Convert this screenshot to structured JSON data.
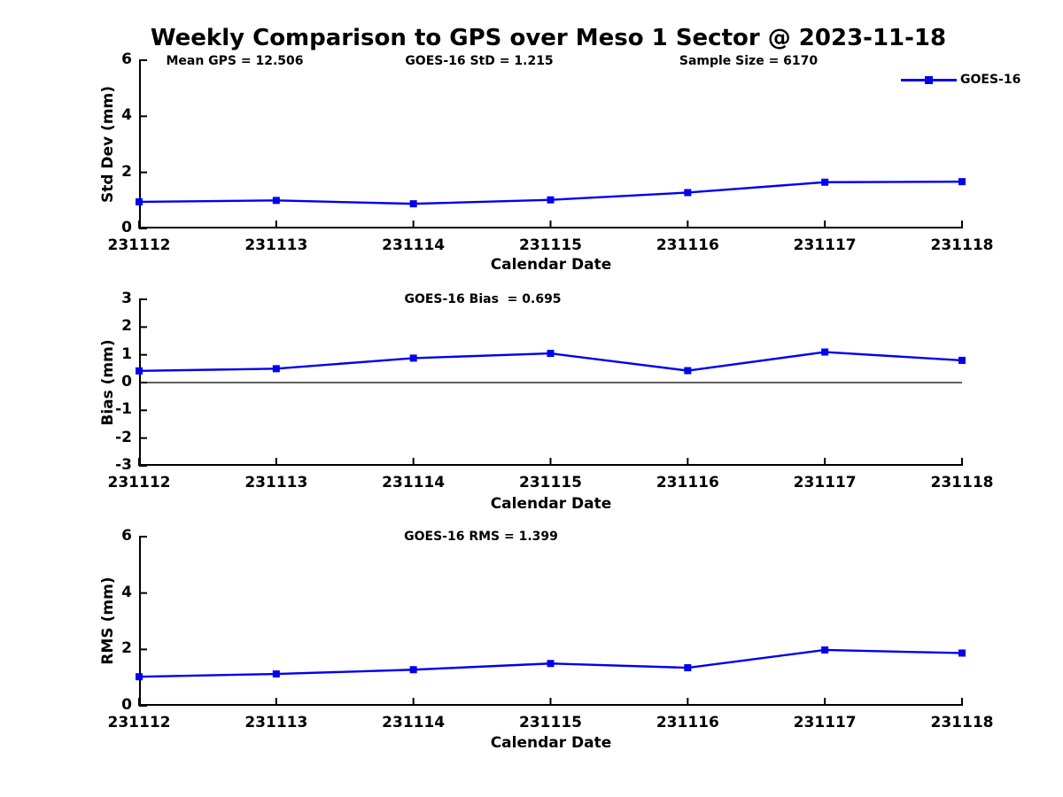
{
  "title": "Weekly Comparison to GPS over Meso 1 Sector @ 2023-11-18",
  "annotations": {
    "mean_gps": "Mean GPS = 12.506",
    "goes16_std": "GOES-16 StD = 1.215",
    "sample_size": "Sample Size = 6170"
  },
  "legend": {
    "label": "GOES-16"
  },
  "colors": {
    "line": "#0000ee",
    "axis": "#000000",
    "background": "#ffffff"
  },
  "chart_data": [
    {
      "type": "line",
      "title": "",
      "ylabel": "Std Dev (mm)",
      "xlabel": "Calendar Date",
      "x": [
        "231112",
        "231113",
        "231114",
        "231115",
        "231116",
        "231117",
        "231118"
      ],
      "series": [
        {
          "name": "GOES-16",
          "values": [
            0.95,
            1.0,
            0.88,
            1.02,
            1.28,
            1.65,
            1.67
          ]
        }
      ],
      "ylim": [
        0,
        6
      ],
      "yticks": [
        0,
        2,
        4,
        6
      ],
      "grid": false,
      "legend_position": "top-right",
      "zero_line": false
    },
    {
      "type": "line",
      "title": "GOES-16 Bias  = 0.695",
      "ylabel": "Bias (mm)",
      "xlabel": "Calendar Date",
      "x": [
        "231112",
        "231113",
        "231114",
        "231115",
        "231116",
        "231117",
        "231118"
      ],
      "series": [
        {
          "name": "GOES-16",
          "values": [
            0.42,
            0.5,
            0.88,
            1.05,
            0.43,
            1.1,
            0.8
          ]
        }
      ],
      "ylim": [
        -3,
        3
      ],
      "yticks": [
        -3,
        -2,
        -1,
        0,
        1,
        2,
        3
      ],
      "grid": false,
      "legend_position": "none",
      "zero_line": true
    },
    {
      "type": "line",
      "title": "GOES-16 RMS = 1.399",
      "ylabel": "RMS (mm)",
      "xlabel": "Calendar Date",
      "x": [
        "231112",
        "231113",
        "231114",
        "231115",
        "231116",
        "231117",
        "231118"
      ],
      "series": [
        {
          "name": "GOES-16",
          "values": [
            1.03,
            1.13,
            1.28,
            1.5,
            1.35,
            1.98,
            1.87
          ]
        }
      ],
      "ylim": [
        0,
        6
      ],
      "yticks": [
        0,
        2,
        4,
        6
      ],
      "grid": false,
      "legend_position": "none",
      "zero_line": false
    }
  ]
}
